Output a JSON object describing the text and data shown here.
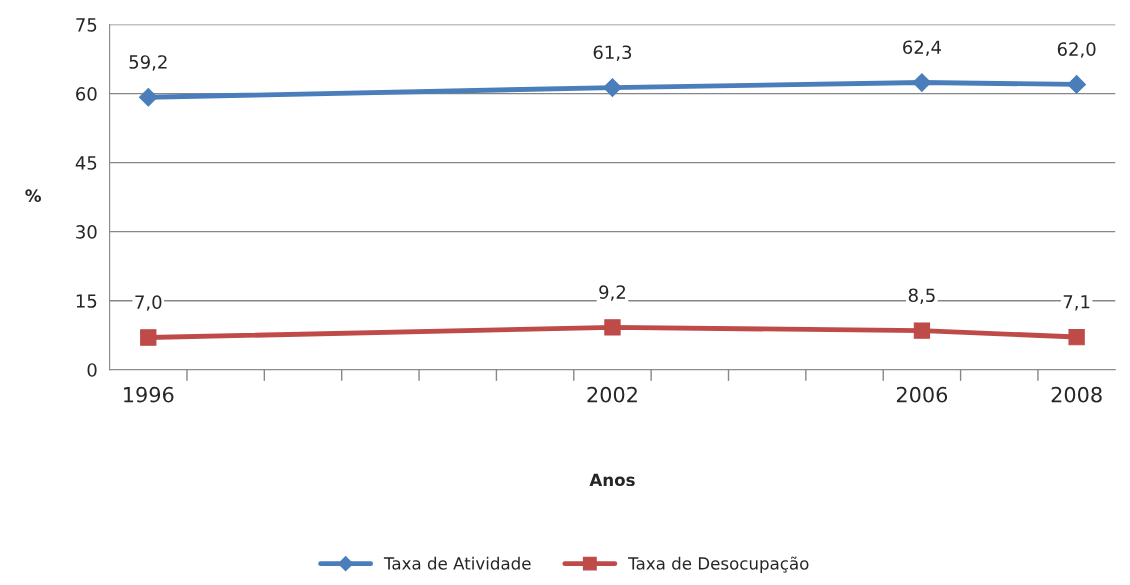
{
  "chart_data": {
    "type": "line",
    "xlabel": "Anos",
    "ylabel": "%",
    "x": [
      1996,
      2002,
      2006,
      2008
    ],
    "xlim": [
      1995.5,
      2008.5
    ],
    "xticks": [
      {
        "value": 1996,
        "label": "1996"
      },
      {
        "value": 2002,
        "label": "2002"
      },
      {
        "value": 2006,
        "label": "2006"
      },
      {
        "value": 2008,
        "label": "2008"
      },
      {
        "value": 1996.5,
        "label": null
      },
      {
        "value": 1997.5,
        "label": null
      },
      {
        "value": 1998.5,
        "label": null
      },
      {
        "value": 1999.5,
        "label": null
      },
      {
        "value": 2000.5,
        "label": null
      },
      {
        "value": 2001.5,
        "label": null
      },
      {
        "value": 2002.5,
        "label": null
      },
      {
        "value": 2003.5,
        "label": null
      },
      {
        "value": 2004.5,
        "label": null
      },
      {
        "value": 2005.5,
        "label": null
      },
      {
        "value": 2006.5,
        "label": null
      },
      {
        "value": 2007.5,
        "label": null
      }
    ],
    "ylim": [
      0,
      75
    ],
    "yticks": [
      0,
      15,
      30,
      45,
      60,
      75
    ],
    "grid": "y",
    "legend": "bottom",
    "line_style": "solid",
    "series": [
      {
        "name": "Taxa de Atividade",
        "color": "#4a7ebb",
        "marker": "diamond",
        "values": [
          59.2,
          61.3,
          62.4,
          62.0
        ],
        "value_labels": [
          "59,2",
          "61,3",
          "62,4",
          "62,0"
        ]
      },
      {
        "name": "Taxa de Desocupação",
        "color": "#be4b48",
        "marker": "square",
        "values": [
          7.0,
          9.2,
          8.5,
          7.1
        ],
        "value_labels": [
          "7,0",
          "9,2",
          "8,5",
          "7,1"
        ]
      }
    ]
  }
}
